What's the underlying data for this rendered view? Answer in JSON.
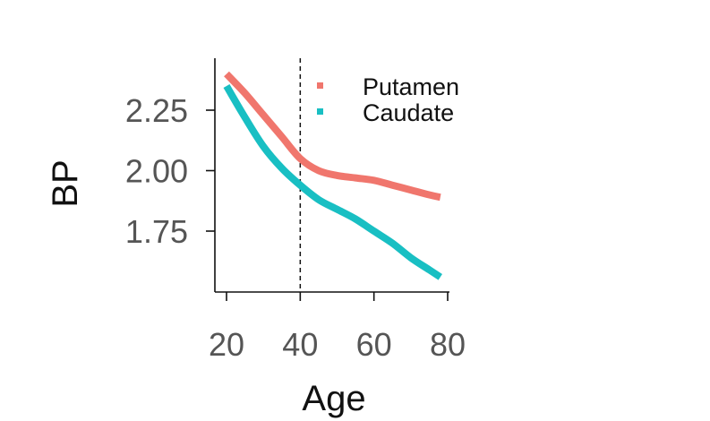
{
  "chart_data": {
    "type": "line",
    "title": "",
    "xlabel": "Age",
    "ylabel": "BP",
    "xlim": [
      18,
      80
    ],
    "ylim": [
      1.54,
      2.42
    ],
    "x_ticks": [
      20,
      40,
      60,
      80
    ],
    "x_tick_labels": [
      "20",
      "40",
      "60",
      "80"
    ],
    "y_ticks": [
      1.75,
      2.0,
      2.25
    ],
    "y_tick_labels": [
      "1.75",
      "2.00",
      "2.25"
    ],
    "grid": false,
    "legend_position": "top-right",
    "reference_line": {
      "axis": "x",
      "value": 40,
      "style": "dashed"
    },
    "series": [
      {
        "name": "Putamen",
        "color": "#F0766D",
        "x": [
          20,
          25,
          30,
          35,
          40,
          45,
          50,
          55,
          60,
          65,
          70,
          75,
          78
        ],
        "y": [
          2.4,
          2.32,
          2.23,
          2.14,
          2.05,
          2.0,
          1.98,
          1.97,
          1.96,
          1.94,
          1.92,
          1.9,
          1.89
        ]
      },
      {
        "name": "Caudate",
        "color": "#19BFC3",
        "x": [
          20,
          25,
          30,
          35,
          40,
          45,
          50,
          55,
          60,
          65,
          70,
          75,
          78
        ],
        "y": [
          2.35,
          2.22,
          2.1,
          2.01,
          1.94,
          1.88,
          1.84,
          1.8,
          1.75,
          1.7,
          1.64,
          1.59,
          1.56
        ]
      }
    ]
  }
}
